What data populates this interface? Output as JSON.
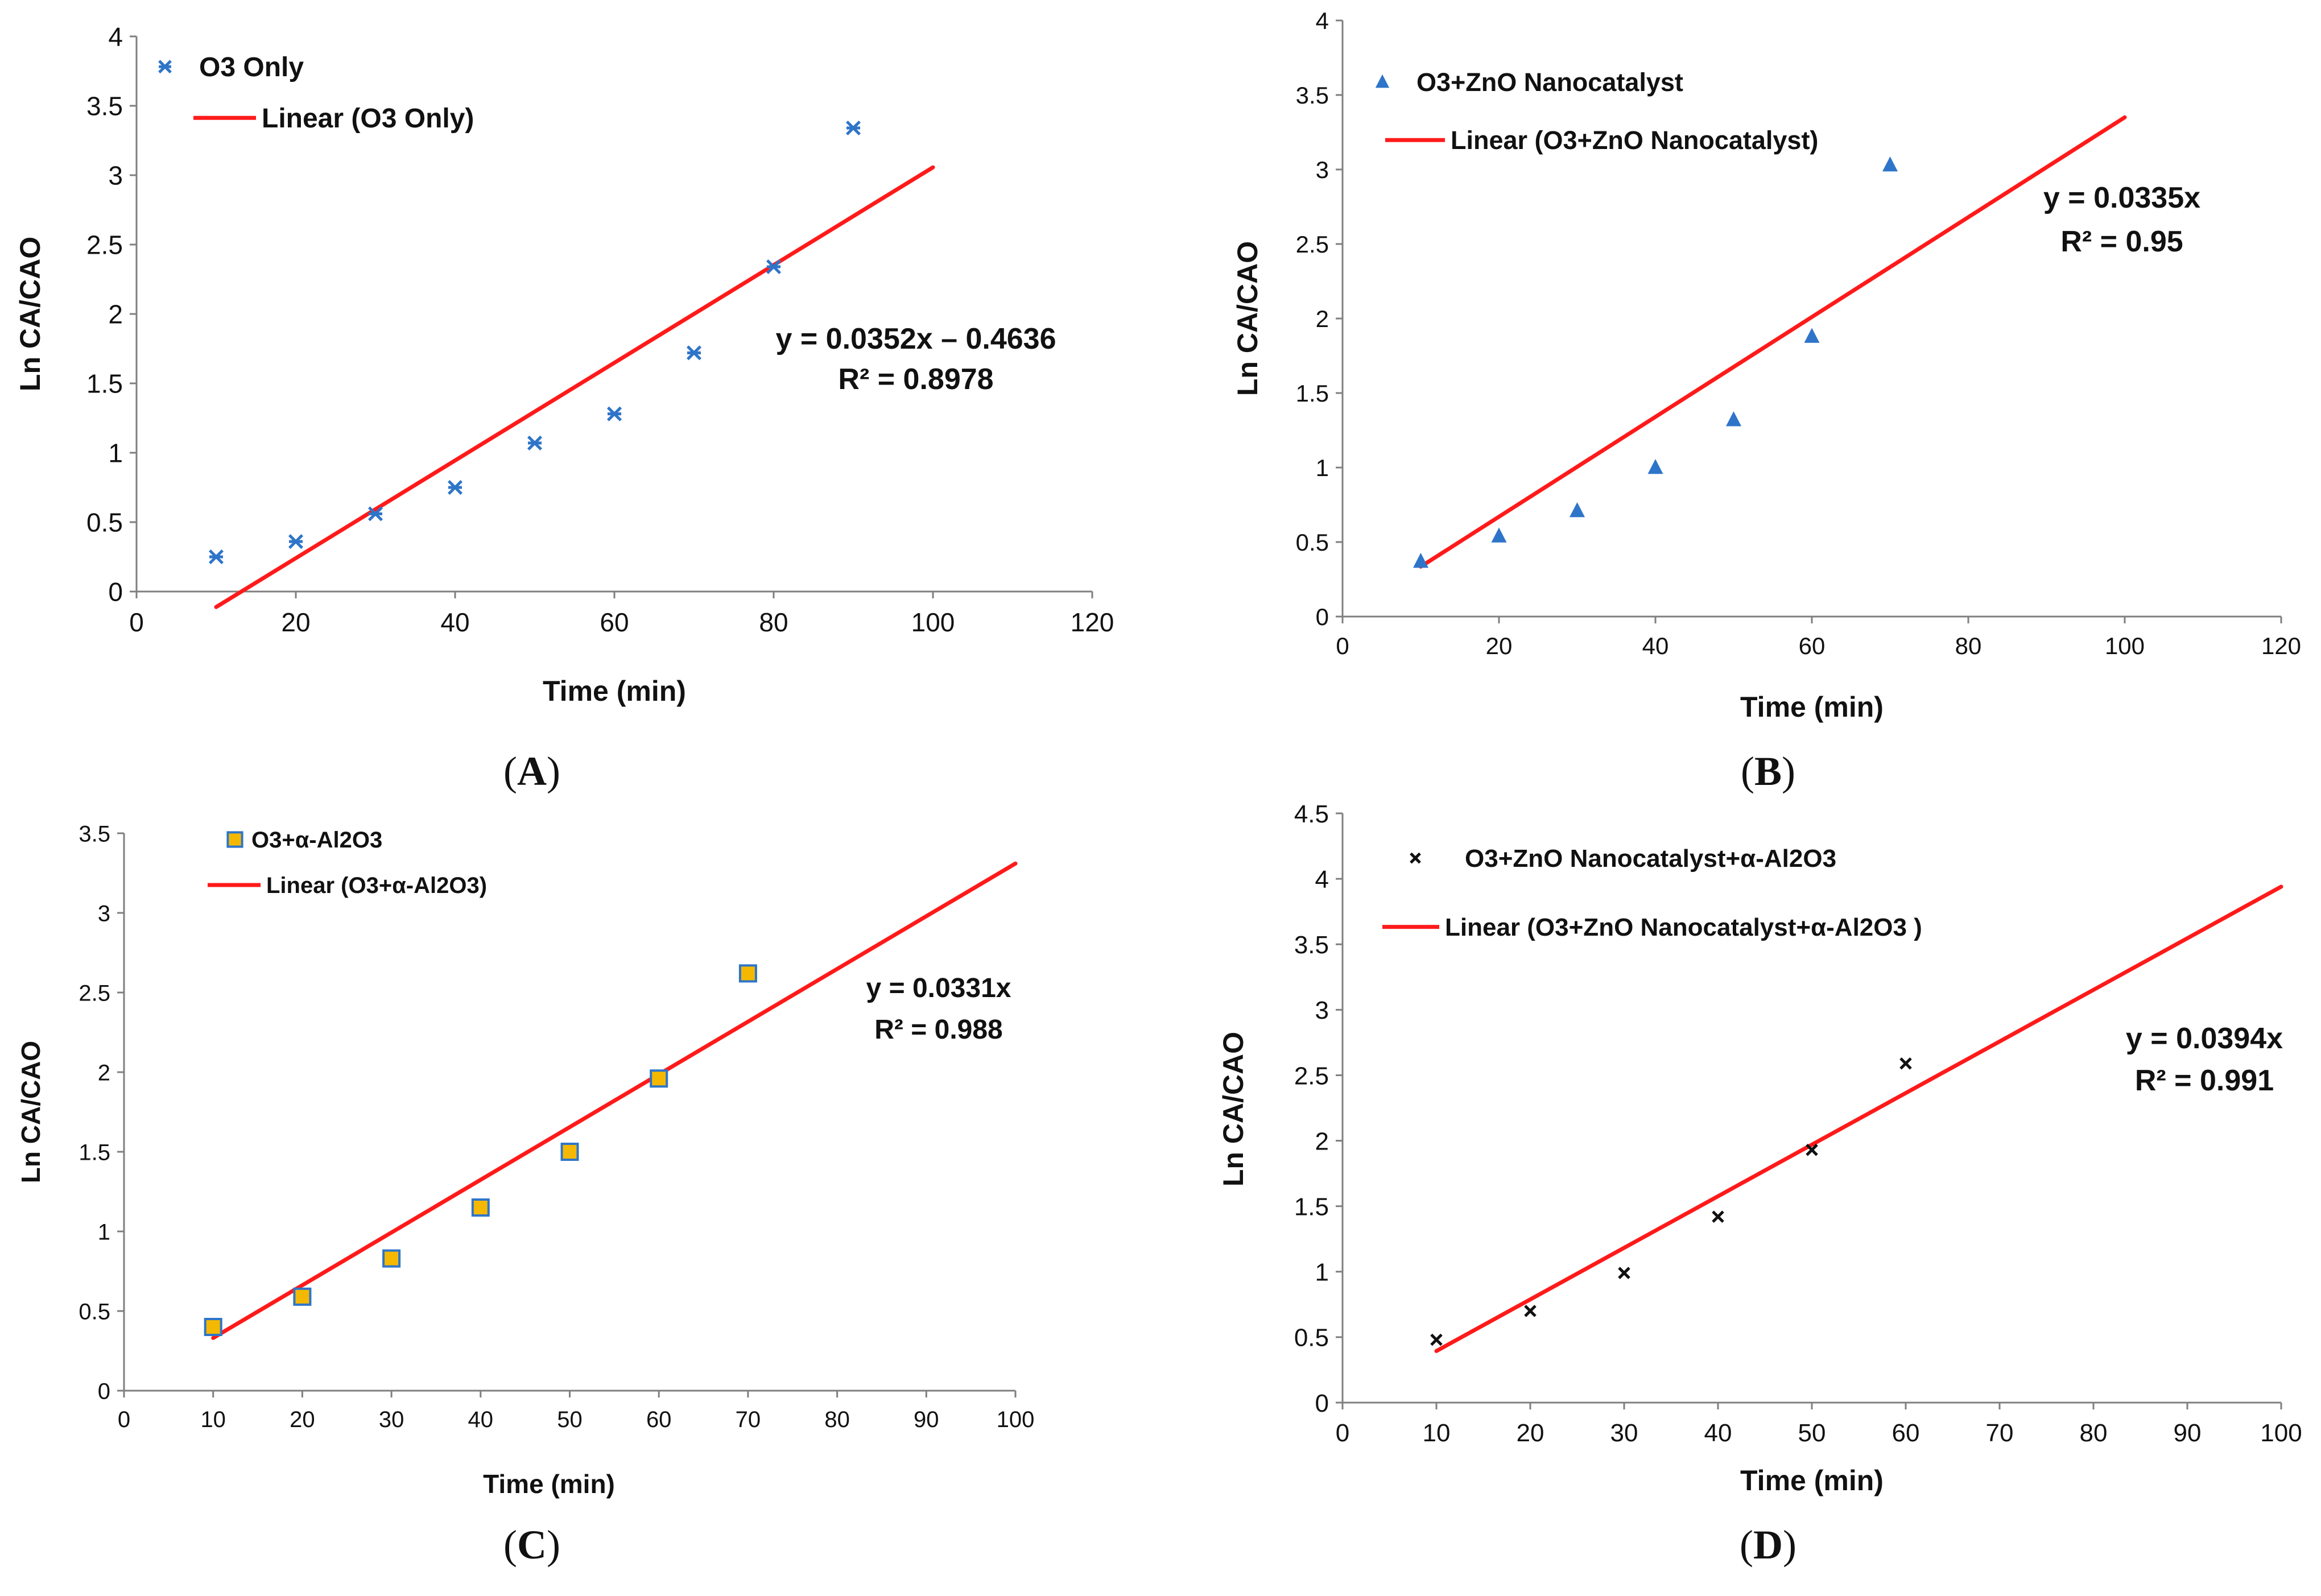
{
  "colors": {
    "trendline": "#ff1a1a",
    "marker_blue": "#2e75c9",
    "marker_orange": "#f5b800",
    "marker_dark": "#111111",
    "axis": "#7f7f7f",
    "text": "#111111"
  },
  "chart_data": [
    {
      "type": "scatter",
      "panel_label": "A",
      "xlabel": "Time (min)",
      "ylabel": "Ln CA/CAO",
      "xlim": [
        0,
        120
      ],
      "ylim": [
        0,
        4
      ],
      "xticks": [
        "0",
        "20",
        "40",
        "60",
        "80",
        "100",
        "120"
      ],
      "yticks": [
        "0",
        "0.5",
        "1",
        "1.5",
        "2",
        "2.5",
        "3",
        "3.5",
        "4"
      ],
      "series": [
        {
          "name": "O3 Only",
          "marker": "asterisk",
          "x": [
            10,
            20,
            30,
            40,
            50,
            60,
            70,
            80,
            90
          ],
          "y": [
            0.25,
            0.36,
            0.56,
            0.75,
            1.07,
            1.28,
            1.72,
            2.34,
            3.34
          ]
        }
      ],
      "trendline": {
        "name": "Linear (O3 Only)",
        "slope": 0.0352,
        "intercept": -0.4636,
        "x": [
          10,
          100
        ]
      },
      "equation": "y = 0.0352x – 0.4636",
      "r2": "R² = 0.8978",
      "legend_position": "top-left"
    },
    {
      "type": "scatter",
      "panel_label": "B",
      "xlabel": "Time (min)",
      "ylabel": "Ln CA/CAO",
      "xlim": [
        0,
        120
      ],
      "ylim": [
        0,
        4
      ],
      "xticks": [
        "0",
        "20",
        "40",
        "60",
        "80",
        "100",
        "120"
      ],
      "yticks": [
        "0",
        "0.5",
        "1",
        "1.5",
        "2",
        "2.5",
        "3",
        "3.5",
        "4"
      ],
      "series": [
        {
          "name": "O3+ZnO Nanocatalyst",
          "marker": "triangle",
          "x": [
            10,
            20,
            30,
            40,
            50,
            60,
            70
          ],
          "y": [
            0.37,
            0.54,
            0.71,
            1.0,
            1.32,
            1.88,
            3.03
          ]
        }
      ],
      "trendline": {
        "name": "Linear (O3+ZnO Nanocatalyst)",
        "slope": 0.0335,
        "intercept": 0,
        "x": [
          10,
          100
        ]
      },
      "equation": "y = 0.0335x",
      "r2": "R² = 0.95",
      "legend_position": "top-left"
    },
    {
      "type": "scatter",
      "panel_label": "C",
      "xlabel": "Time (min)",
      "ylabel": "Ln CA/CAO",
      "xlim": [
        0,
        100
      ],
      "ylim": [
        0,
        3.5
      ],
      "xticks": [
        "0",
        "10",
        "20",
        "30",
        "40",
        "50",
        "60",
        "70",
        "80",
        "90",
        "100"
      ],
      "yticks": [
        "0",
        "0.5",
        "1",
        "1.5",
        "2",
        "2.5",
        "3",
        "3.5"
      ],
      "series": [
        {
          "name": "O3+α-Al2O3",
          "marker": "square",
          "x": [
            10,
            20,
            30,
            40,
            50,
            60,
            70
          ],
          "y": [
            0.4,
            0.59,
            0.83,
            1.15,
            1.5,
            1.96,
            2.62
          ]
        }
      ],
      "trendline": {
        "name": "Linear (O3+α-Al2O3)",
        "slope": 0.0331,
        "intercept": 0,
        "x": [
          10,
          100
        ]
      },
      "equation": "y = 0.0331x",
      "r2": "R² = 0.988",
      "legend_position": "top-left"
    },
    {
      "type": "scatter",
      "panel_label": "D",
      "xlabel": "Time (min)",
      "ylabel": "Ln CA/CAO",
      "xlim": [
        0,
        100
      ],
      "ylim": [
        0,
        4.5
      ],
      "xticks": [
        "0",
        "10",
        "20",
        "30",
        "40",
        "50",
        "60",
        "70",
        "80",
        "90",
        "100"
      ],
      "yticks": [
        "0",
        "0.5",
        "1",
        "1.5",
        "2",
        "2.5",
        "3",
        "3.5",
        "4",
        "4.5"
      ],
      "series": [
        {
          "name": "O3+ZnO Nanocatalyst+α-Al2O3",
          "marker": "cross",
          "x": [
            10,
            20,
            30,
            40,
            50,
            60
          ],
          "y": [
            0.48,
            0.7,
            0.99,
            1.42,
            1.93,
            2.59
          ]
        }
      ],
      "trendline": {
        "name": "Linear (O3+ZnO Nanocatalyst+α-Al2O3 )",
        "slope": 0.0394,
        "intercept": 0,
        "x": [
          10,
          100
        ]
      },
      "equation": "y = 0.0394x",
      "r2": "R² = 0.991",
      "legend_position": "top-left"
    }
  ]
}
